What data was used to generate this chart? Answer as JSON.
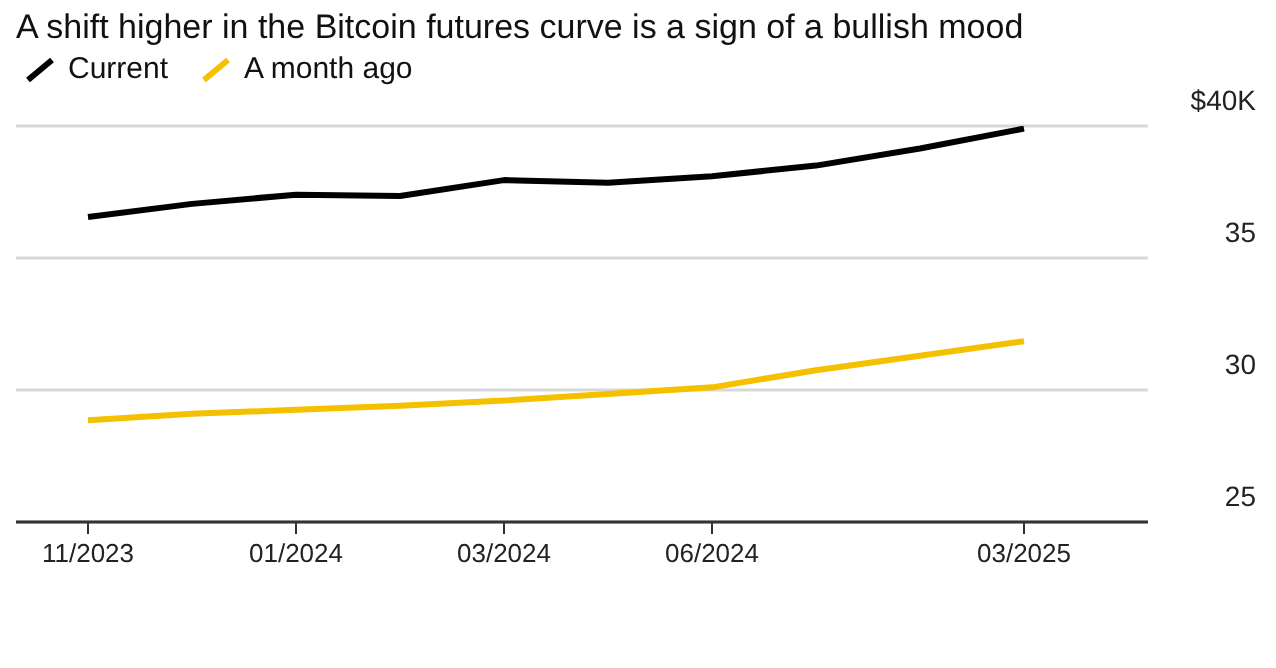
{
  "chart_data": {
    "type": "line",
    "title": "A shift higher in the Bitcoin futures curve is a sign of a bullish mood",
    "categories": [
      "11/2023",
      null,
      "01/2024",
      null,
      "03/2024",
      null,
      "06/2024",
      null,
      null,
      "03/2025"
    ],
    "series": [
      {
        "name": "Current",
        "color": "#000000",
        "values": [
          36.55,
          37.05,
          37.4,
          37.35,
          37.95,
          37.85,
          38.1,
          38.5,
          39.15,
          39.9
        ]
      },
      {
        "name": "A month ago",
        "color": "#f5c000",
        "values": [
          28.85,
          29.1,
          29.25,
          29.4,
          29.6,
          29.85,
          30.1,
          30.75,
          31.3,
          31.85
        ]
      }
    ],
    "ylim": [
      25,
      40
    ],
    "yticks": [
      25,
      30,
      35,
      {
        "value": 40,
        "label": "$40K"
      }
    ],
    "grid": "y",
    "legend": "top left",
    "marker": "none",
    "line_style": "solid"
  }
}
